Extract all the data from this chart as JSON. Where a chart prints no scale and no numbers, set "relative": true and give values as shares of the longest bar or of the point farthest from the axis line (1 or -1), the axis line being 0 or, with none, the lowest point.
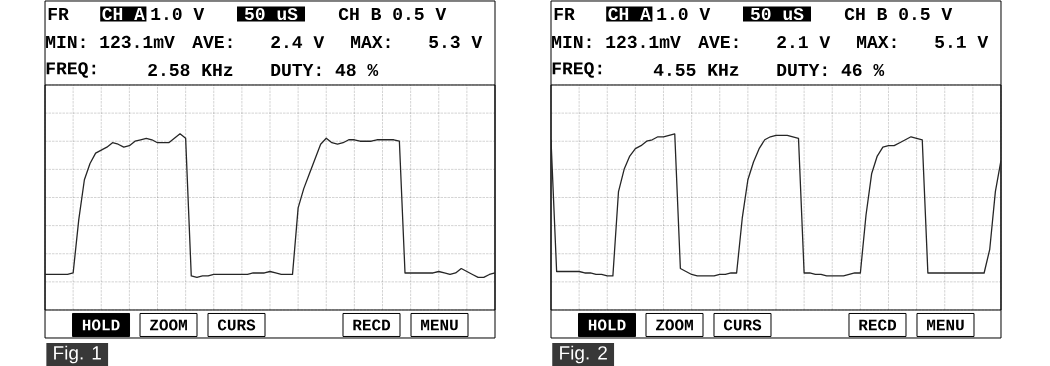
{
  "chart_data": [
    {
      "type": "line",
      "relative": true,
      "grid": true,
      "color": "#262626",
      "categories": [
        null,
        null,
        null,
        null,
        null,
        null,
        null,
        null,
        null,
        null,
        null,
        null,
        null,
        null,
        null,
        null,
        null,
        null,
        null,
        null,
        null,
        null,
        null,
        null,
        null,
        null,
        null,
        null,
        null,
        null,
        null,
        null,
        null,
        null,
        null,
        null,
        null,
        null,
        null,
        null,
        null,
        null,
        null,
        null,
        null,
        null,
        null,
        null,
        null,
        null,
        null,
        null,
        null,
        null,
        null,
        null,
        null,
        null,
        null,
        null,
        null,
        null,
        null,
        null,
        null,
        null,
        null,
        null,
        null,
        null,
        null,
        null,
        null,
        null,
        null,
        null,
        null,
        null,
        null,
        null,
        null
      ],
      "values": [
        0.05,
        0.05,
        0.05,
        0.05,
        0.05,
        0.06,
        0.42,
        0.69,
        0.8,
        0.87,
        0.89,
        0.91,
        0.94,
        0.93,
        0.91,
        0.92,
        0.95,
        0.96,
        0.97,
        0.96,
        0.94,
        0.94,
        0.94,
        0.97,
        1.0,
        0.97,
        0.04,
        0.03,
        0.04,
        0.04,
        0.05,
        0.05,
        0.05,
        0.05,
        0.05,
        0.05,
        0.05,
        0.06,
        0.06,
        0.06,
        0.07,
        0.06,
        0.05,
        0.05,
        0.05,
        0.5,
        0.63,
        0.73,
        0.83,
        0.93,
        0.97,
        0.94,
        0.93,
        0.94,
        0.96,
        0.96,
        0.95,
        0.95,
        0.95,
        0.96,
        0.96,
        0.96,
        0.96,
        0.95,
        0.06,
        0.06,
        0.06,
        0.06,
        0.06,
        0.06,
        0.07,
        0.06,
        0.05,
        0.06,
        0.09,
        0.07,
        0.05,
        0.03,
        0.03,
        0.05,
        0.06
      ],
      "annotations": [
        "FR",
        "CH A",
        "1.0 V",
        "50 uS",
        "CH B 0.5 V",
        "MIN: 123.1mV",
        "AVE:",
        "2.4 V",
        "MAX:",
        "5.3 V",
        "FREQ:",
        "2.58 KHz",
        "DUTY: 48 %",
        "HOLD",
        "ZOOM",
        "CURS",
        "RECD",
        "MENU",
        "Fig. 1"
      ]
    },
    {
      "type": "line",
      "relative": true,
      "grid": true,
      "color": "#262626",
      "categories": [
        null,
        null,
        null,
        null,
        null,
        null,
        null,
        null,
        null,
        null,
        null,
        null,
        null,
        null,
        null,
        null,
        null,
        null,
        null,
        null,
        null,
        null,
        null,
        null,
        null,
        null,
        null,
        null,
        null,
        null,
        null,
        null,
        null,
        null,
        null,
        null,
        null,
        null,
        null,
        null,
        null,
        null,
        null,
        null,
        null,
        null,
        null,
        null,
        null,
        null,
        null,
        null,
        null,
        null,
        null,
        null,
        null,
        null,
        null,
        null,
        null,
        null,
        null,
        null,
        null,
        null,
        null,
        null,
        null,
        null,
        null,
        null,
        null,
        null,
        null,
        null,
        null,
        null,
        null,
        null,
        null
      ],
      "values": [
        0.96,
        0.07,
        0.07,
        0.07,
        0.07,
        0.07,
        0.06,
        0.06,
        0.05,
        0.05,
        0.04,
        0.04,
        0.61,
        0.76,
        0.85,
        0.9,
        0.92,
        0.95,
        0.96,
        0.98,
        0.98,
        0.99,
        1.0,
        0.09,
        0.07,
        0.05,
        0.04,
        0.04,
        0.04,
        0.04,
        0.05,
        0.05,
        0.06,
        0.06,
        0.43,
        0.69,
        0.81,
        0.9,
        0.96,
        0.98,
        0.99,
        0.99,
        0.99,
        0.98,
        0.97,
        0.06,
        0.06,
        0.05,
        0.05,
        0.04,
        0.04,
        0.04,
        0.04,
        0.05,
        0.06,
        0.06,
        0.45,
        0.73,
        0.85,
        0.91,
        0.92,
        0.92,
        0.94,
        0.96,
        0.98,
        0.97,
        0.96,
        0.06,
        0.06,
        0.06,
        0.06,
        0.06,
        0.06,
        0.06,
        0.06,
        0.06,
        0.06,
        0.06,
        0.22,
        0.61,
        0.82
      ],
      "annotations": [
        "FR",
        "CH A",
        "1.0 V",
        "50 uS",
        "CH B 0.5 V",
        "MIN: 123.1mV",
        "AVE:",
        "2.1 V",
        "MAX:",
        "5.1 V",
        "FREQ:",
        "4.55 KHz",
        "DUTY: 46 %",
        "HOLD",
        "ZOOM",
        "CURS",
        "RECD",
        "MENU",
        "Fig. 2"
      ]
    }
  ]
}
